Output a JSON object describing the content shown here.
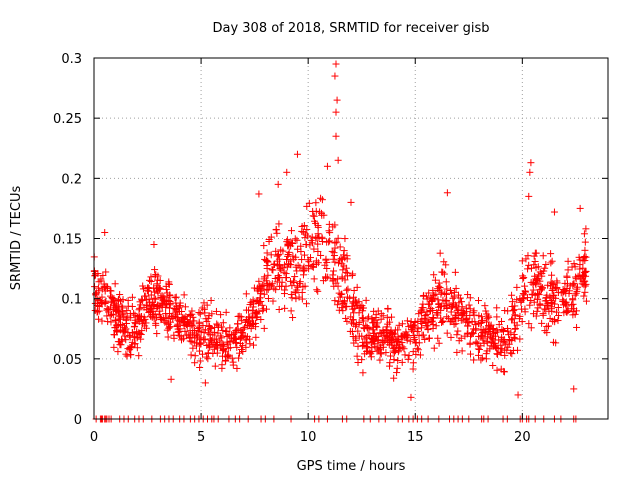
{
  "chart_data": {
    "type": "scatter",
    "title": "Day 308 of 2018, SRMTID for receiver gisb",
    "xlabel": "GPS time / hours",
    "ylabel": "SRMTID / TECUs",
    "xlim": [
      0,
      24
    ],
    "ylim": [
      0,
      0.3
    ],
    "xticks": [
      0,
      5,
      10,
      15,
      20
    ],
    "xtick_labels": [
      "0",
      "5",
      "10",
      "15",
      "20"
    ],
    "yticks": [
      0,
      0.05,
      0.1,
      0.15,
      0.2,
      0.25,
      0.3
    ],
    "ytick_labels": [
      "0",
      "0.05",
      "0.1",
      "0.15",
      "0.2",
      "0.25",
      "0.3"
    ],
    "grid": true,
    "marker": "+",
    "series": [
      {
        "name": "SRMTID",
        "color": "#ff0000",
        "envelope_hours": [
          0.0,
          0.5,
          1.0,
          1.5,
          2.0,
          2.5,
          3.0,
          3.5,
          4.0,
          4.5,
          5.0,
          5.5,
          6.0,
          6.5,
          7.0,
          7.5,
          8.0,
          8.5,
          9.0,
          9.5,
          10.0,
          10.5,
          11.0,
          11.5,
          12.0,
          12.5,
          13.0,
          13.5,
          14.0,
          14.5,
          15.0,
          15.5,
          16.0,
          16.5,
          17.0,
          17.5,
          18.0,
          18.5,
          19.0,
          19.5,
          20.0,
          20.5,
          21.0,
          21.5,
          22.0,
          22.5,
          23.0
        ],
        "envelope_center": [
          0.11,
          0.1,
          0.085,
          0.075,
          0.07,
          0.1,
          0.095,
          0.09,
          0.085,
          0.075,
          0.07,
          0.07,
          0.065,
          0.065,
          0.07,
          0.09,
          0.115,
          0.13,
          0.13,
          0.12,
          0.14,
          0.155,
          0.14,
          0.12,
          0.09,
          0.075,
          0.07,
          0.07,
          0.065,
          0.065,
          0.07,
          0.085,
          0.095,
          0.1,
          0.085,
          0.08,
          0.075,
          0.07,
          0.065,
          0.08,
          0.1,
          0.11,
          0.105,
          0.1,
          0.1,
          0.105,
          0.12
        ],
        "envelope_spread": [
          0.025,
          0.03,
          0.025,
          0.025,
          0.025,
          0.03,
          0.03,
          0.03,
          0.025,
          0.025,
          0.03,
          0.025,
          0.025,
          0.025,
          0.025,
          0.03,
          0.035,
          0.04,
          0.045,
          0.045,
          0.04,
          0.045,
          0.05,
          0.045,
          0.035,
          0.03,
          0.025,
          0.025,
          0.025,
          0.025,
          0.03,
          0.03,
          0.035,
          0.035,
          0.03,
          0.03,
          0.03,
          0.025,
          0.03,
          0.03,
          0.035,
          0.035,
          0.035,
          0.035,
          0.03,
          0.035,
          0.035
        ],
        "peaks": [
          {
            "x": 11.3,
            "y": 0.295
          },
          {
            "x": 11.25,
            "y": 0.285
          },
          {
            "x": 11.35,
            "y": 0.265
          },
          {
            "x": 11.3,
            "y": 0.255
          },
          {
            "x": 11.3,
            "y": 0.235
          },
          {
            "x": 9.5,
            "y": 0.22
          },
          {
            "x": 11.4,
            "y": 0.215
          },
          {
            "x": 20.4,
            "y": 0.213
          },
          {
            "x": 20.35,
            "y": 0.205
          },
          {
            "x": 10.9,
            "y": 0.21
          },
          {
            "x": 9.0,
            "y": 0.205
          },
          {
            "x": 8.6,
            "y": 0.195
          },
          {
            "x": 20.3,
            "y": 0.185
          },
          {
            "x": 16.5,
            "y": 0.188
          },
          {
            "x": 22.7,
            "y": 0.175
          },
          {
            "x": 21.5,
            "y": 0.172
          },
          {
            "x": 7.7,
            "y": 0.187
          },
          {
            "x": 12.0,
            "y": 0.18
          },
          {
            "x": 0.5,
            "y": 0.155
          },
          {
            "x": 2.8,
            "y": 0.145
          },
          {
            "x": 14.8,
            "y": 0.018
          },
          {
            "x": 19.8,
            "y": 0.02
          },
          {
            "x": 22.4,
            "y": 0.025
          },
          {
            "x": 5.2,
            "y": 0.03
          },
          {
            "x": 3.6,
            "y": 0.033
          }
        ],
        "zero_points_hours": [
          0.1,
          0.3,
          0.35,
          0.4,
          0.5,
          0.55,
          0.6,
          0.7,
          0.8,
          1.2,
          1.4,
          1.6,
          1.9,
          2.1,
          2.3,
          2.7,
          3.1,
          3.3,
          3.5,
          3.7,
          4.0,
          4.2,
          4.5,
          4.7,
          4.9,
          5.1,
          5.3,
          5.5,
          5.6,
          5.8,
          6.3,
          6.6,
          6.8,
          7.2,
          7.8,
          8.0,
          8.4,
          9.2,
          10.3,
          10.5,
          10.9,
          11.6,
          11.8,
          12.6,
          12.9,
          13.3,
          13.6,
          14.2,
          14.4,
          14.7,
          14.9,
          15.1,
          15.3,
          15.6,
          16.1,
          16.6,
          16.8,
          17.0,
          17.2,
          17.5,
          18.1,
          18.2,
          18.4,
          19.1,
          19.3,
          19.9,
          20.0,
          20.2,
          20.3,
          20.6,
          21.0,
          21.5,
          21.8,
          22.4,
          22.5
        ]
      }
    ]
  }
}
